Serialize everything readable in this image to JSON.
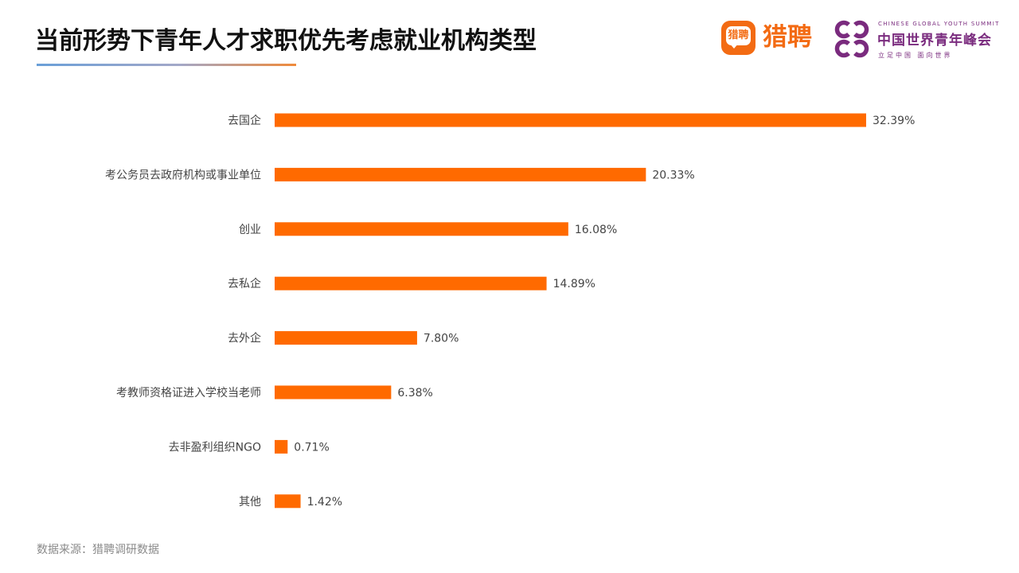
{
  "title": "当前形势下青年人才求职优先考虑就业机构类型",
  "logos": {
    "liepin": {
      "icon_text": "猎聘",
      "name": "猎聘",
      "color": "#f36b13"
    },
    "summit": {
      "english": "CHINESE GLOBAL YOUTH SUMMIT",
      "chinese": "中国世界青年峰会",
      "slogan": "立足中国  面向世界",
      "color": "#7a2b7e"
    }
  },
  "source": "数据来源：猎聘调研数据",
  "bar_color": "#ff6a00",
  "chart_data": {
    "type": "bar",
    "orientation": "horizontal",
    "categories": [
      "去国企",
      "考公务员去政府机构或事业单位",
      "创业",
      "去私企",
      "去外企",
      "考教师资格证进入学校当老师",
      "去非盈利组织NGO",
      "其他"
    ],
    "values": [
      32.39,
      20.33,
      16.08,
      14.89,
      7.8,
      6.38,
      0.71,
      1.42
    ],
    "value_labels": [
      "32.39%",
      "20.33%",
      "16.08%",
      "14.89%",
      "7.80%",
      "6.38%",
      "0.71%",
      "1.42%"
    ],
    "unit": "%",
    "xlim": [
      0,
      32.39
    ],
    "grid": false,
    "legend": "none"
  }
}
